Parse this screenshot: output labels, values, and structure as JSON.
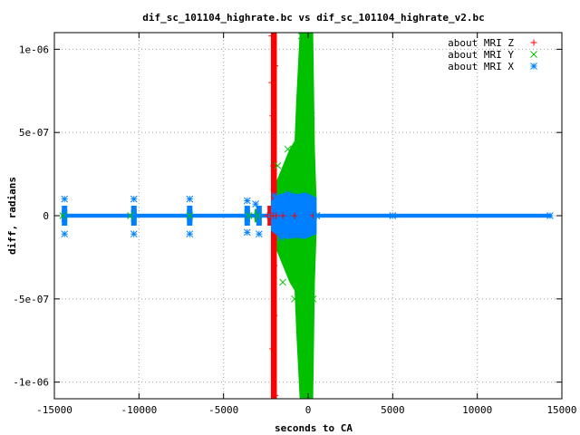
{
  "chart_data": {
    "type": "scatter",
    "title": "dif_sc_101104_highrate.bc vs dif_sc_101104_highrate_v2.bc",
    "xlabel": "seconds to CA",
    "ylabel": "diff, radians",
    "xlim": [
      -15000,
      15000
    ],
    "ylim": [
      -1.1e-06,
      1.1e-06
    ],
    "xticks": [
      -15000,
      -10000,
      -5000,
      0,
      5000,
      10000,
      15000
    ],
    "xtick_labels": [
      "-15000",
      "-10000",
      "-5000",
      "0",
      "5000",
      "10000",
      "15000"
    ],
    "yticks": [
      1e-06,
      5e-07,
      0,
      -5e-07,
      -1e-06
    ],
    "ytick_labels": [
      "1e-06",
      "5e-07",
      "0",
      "-5e-07",
      "-1e-06"
    ],
    "grid": true,
    "legend": "top-right",
    "series": [
      {
        "name": "about MRI Z",
        "marker": "+",
        "color": "#ff0000",
        "x": [
          -2150,
          -2100,
          -2050,
          -2000,
          -1950,
          -2150,
          -2100,
          -2050,
          -2000,
          -1950,
          -2200,
          -1900,
          -2400,
          -1500,
          -800,
          300
        ],
        "y": [
          1.08e-06,
          6e-07,
          0,
          -6e-07,
          -1.08e-06,
          8e-07,
          -8e-07,
          3e-07,
          -3e-07,
          9e-07,
          0,
          0,
          0,
          0,
          0,
          0
        ]
      },
      {
        "name": "about MRI Y",
        "marker": "x",
        "color": "#00c000",
        "x": [
          -14500,
          -10500,
          -7000,
          -3500,
          -3000,
          -1800,
          -1500,
          -1200,
          -800,
          -400,
          -100,
          0,
          100,
          200,
          300,
          500
        ],
        "y": [
          0,
          0,
          0,
          0,
          0,
          3e-07,
          -4e-07,
          4e-07,
          -5e-07,
          1.08e-06,
          -1.08e-06,
          1.08e-06,
          -1.08e-06,
          6e-07,
          -5e-07,
          0
        ]
      },
      {
        "name": "about MRI X",
        "marker": "*",
        "color": "#0080ff",
        "x": [
          -14400,
          -14400,
          -10300,
          -10300,
          -7000,
          -7000,
          -3600,
          -3600,
          -3100,
          -2900,
          -2000,
          -1600,
          -1200,
          -600,
          0,
          500,
          5000,
          14300
        ],
        "y": [
          1e-07,
          -1.1e-07,
          1e-07,
          -1.1e-07,
          1e-07,
          -1.1e-07,
          9e-08,
          -1e-07,
          7e-08,
          -1.1e-07,
          1.2e-07,
          -1.3e-07,
          1.3e-07,
          -1.2e-07,
          1.1e-07,
          0,
          0,
          0
        ]
      }
    ]
  }
}
